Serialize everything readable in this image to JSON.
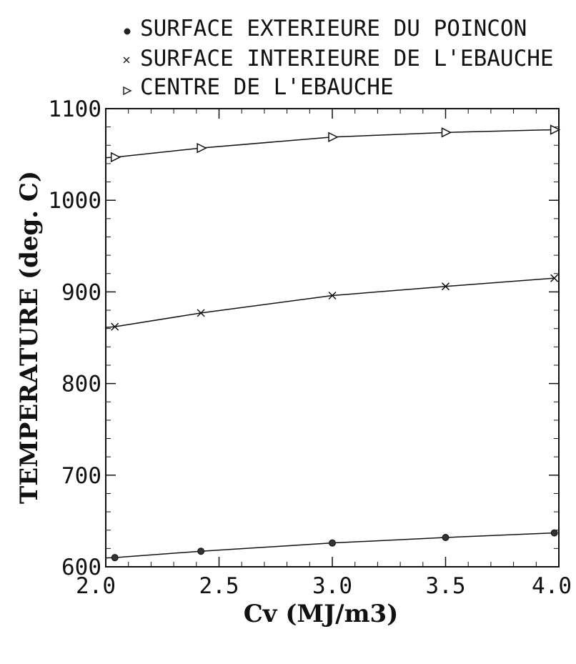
{
  "chart_data": {
    "type": "line",
    "legend_position": "top",
    "xlabel": "Cv (MJ/m3)",
    "ylabel": "TEMPERATURE (deg. C)",
    "xlim": [
      2.0,
      4.0
    ],
    "ylim": [
      600,
      1100
    ],
    "x_ticks": [
      2.0,
      2.5,
      3.0,
      3.5,
      4.0
    ],
    "x_tick_labels": [
      "2.0",
      "2.5",
      "3.0",
      "3.5",
      "4.0"
    ],
    "y_ticks": [
      600,
      700,
      800,
      900,
      1000,
      1100
    ],
    "y_tick_labels": [
      "600",
      "700",
      "800",
      "900",
      "1000",
      "1100"
    ],
    "grid": false,
    "series": [
      {
        "name": "SURFACE EXTERIEURE DU POINCON",
        "marker": "circle",
        "x": [
          2.04,
          2.42,
          3.0,
          3.5,
          3.98
        ],
        "y": [
          610,
          617,
          626,
          632,
          637
        ]
      },
      {
        "name": "SURFACE INTERIEURE DE L'EBAUCHE",
        "marker": "x",
        "x": [
          2.04,
          2.42,
          3.0,
          3.5,
          3.98
        ],
        "y": [
          862,
          877,
          896,
          906,
          915
        ]
      },
      {
        "name": "CENTRE DE L'EBAUCHE",
        "marker": "triangle-right",
        "x": [
          2.04,
          2.42,
          3.0,
          3.5,
          3.98
        ],
        "y": [
          1047,
          1057,
          1069,
          1074,
          1077
        ]
      }
    ]
  }
}
